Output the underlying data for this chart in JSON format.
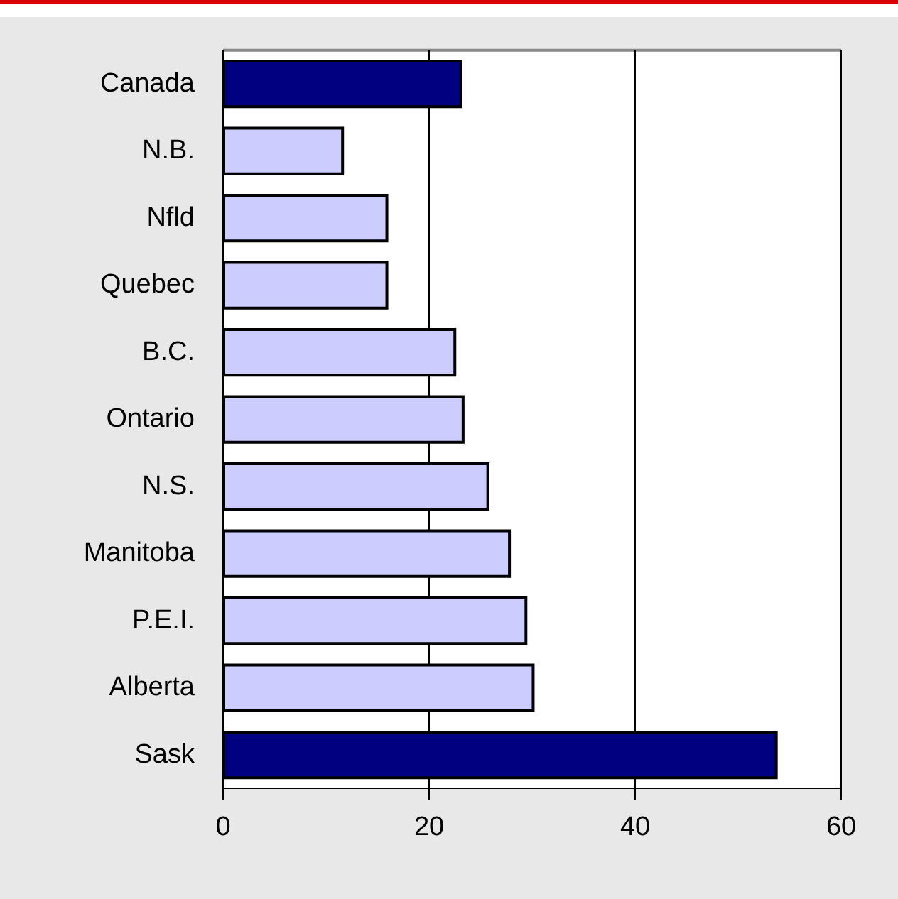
{
  "chart_data": {
    "type": "bar",
    "orientation": "horizontal",
    "categories": [
      "Canada",
      "N.B.",
      "Nfld",
      "Quebec",
      "B.C.",
      "Ontario",
      "N.S.",
      "Manitoba",
      "P.E.I.",
      "Alberta",
      "Sask"
    ],
    "values": [
      23.1,
      11.6,
      15.9,
      15.9,
      22.5,
      23.3,
      25.7,
      27.8,
      29.4,
      30.1,
      53.7
    ],
    "colors": [
      "#000080",
      "#ccccff",
      "#ccccff",
      "#ccccff",
      "#ccccff",
      "#ccccff",
      "#ccccff",
      "#ccccff",
      "#ccccff",
      "#ccccff",
      "#000080"
    ],
    "xlim": [
      0,
      60
    ],
    "xticks": [
      0,
      20,
      40,
      60
    ],
    "grid": "x",
    "legend": false
  }
}
